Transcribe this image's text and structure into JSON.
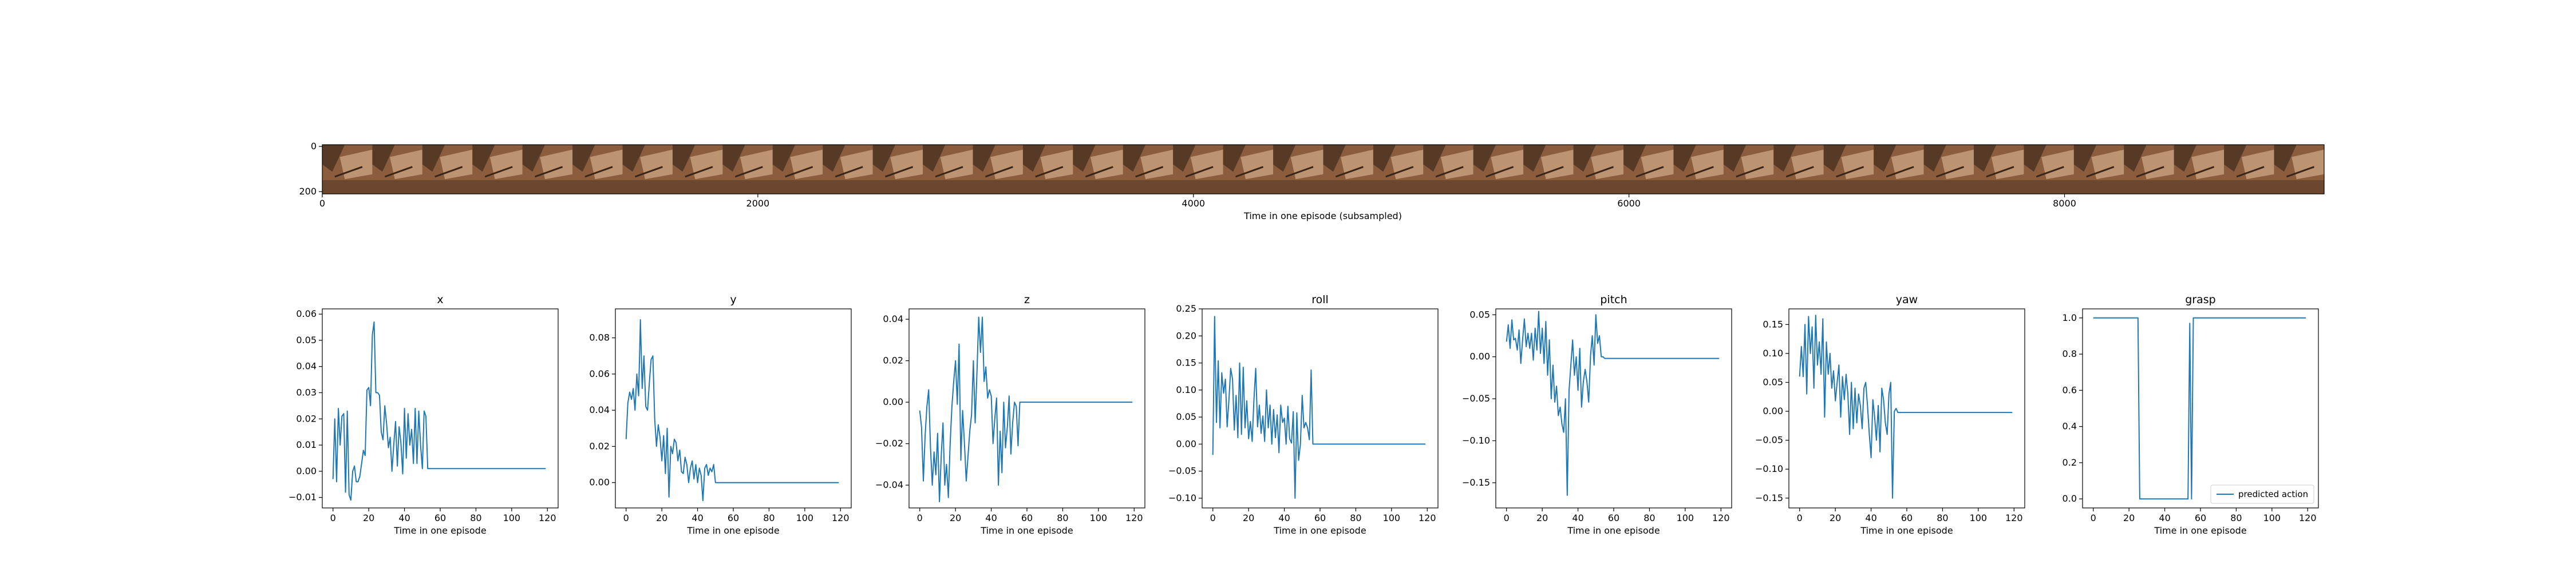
{
  "colors": {
    "line": "#1f77b4",
    "frame": "#000000",
    "tile_dark": "#4e3422",
    "tile_mid": "#8c5d3d",
    "tile_light": "#c9a27f"
  },
  "image_strip": {
    "xlabel": "Time in one episode (subsampled)",
    "x_ticks": [
      "0",
      "2000",
      "4000",
      "6000",
      "8000"
    ],
    "y_ticks": [
      "0",
      "200"
    ],
    "content": "montage of robot camera frames",
    "frame_count": 40
  },
  "chart_data": [
    {
      "type": "line",
      "title": "x",
      "xlabel": "Time in one episode",
      "xlim": [
        -6,
        126
      ],
      "ylim": [
        -0.014,
        0.062
      ],
      "x_ticks": [
        0,
        20,
        40,
        60,
        80,
        100,
        120
      ],
      "y_ticks": [
        {
          "v": -0.01,
          "label": "−0.01"
        },
        {
          "v": 0.0,
          "label": "0.00"
        },
        {
          "v": 0.01,
          "label": "0.01"
        },
        {
          "v": 0.02,
          "label": "0.02"
        },
        {
          "v": 0.03,
          "label": "0.03"
        },
        {
          "v": 0.04,
          "label": "0.04"
        },
        {
          "v": 0.05,
          "label": "0.05"
        },
        {
          "v": 0.06,
          "label": "0.06"
        }
      ],
      "series": [
        {
          "x": [
            0,
            1,
            2,
            3,
            4,
            5,
            6,
            7,
            8,
            9,
            10,
            11,
            12,
            13,
            14,
            15,
            16,
            17,
            18,
            19,
            20,
            21,
            22,
            23,
            24,
            25,
            26,
            27,
            28,
            29,
            30,
            31,
            32,
            33,
            34,
            35,
            36,
            37,
            38,
            39,
            40,
            41,
            42,
            43,
            44,
            45,
            46,
            47,
            48,
            49,
            50,
            51,
            52,
            53,
            54,
            55,
            56,
            60,
            80,
            100,
            119
          ],
          "y": [
            -0.003,
            0.02,
            -0.004,
            0.024,
            0.01,
            0.021,
            0.022,
            -0.008,
            0.023,
            -0.009,
            -0.011,
            0.0,
            0.002,
            -0.004,
            -0.004,
            -0.002,
            0.003,
            0.008,
            0.006,
            0.031,
            0.032,
            0.025,
            0.052,
            0.057,
            0.03,
            0.03,
            0.029,
            0.015,
            0.012,
            0.025,
            0.018,
            0.009,
            0.013,
            0.0,
            0.01,
            0.019,
            0.002,
            0.017,
            0.011,
            -0.001,
            0.024,
            0.005,
            0.022,
            0.01,
            0.016,
            0.003,
            0.024,
            0.003,
            0.023,
            0.01,
            0.001,
            0.023,
            0.021,
            0.001,
            0.001,
            0.001,
            0.001,
            0.001,
            0.001,
            0.001,
            0.001
          ]
        }
      ]
    },
    {
      "type": "line",
      "title": "y",
      "xlabel": "Time in one episode",
      "xlim": [
        -6,
        126
      ],
      "ylim": [
        -0.014,
        0.096
      ],
      "x_ticks": [
        0,
        20,
        40,
        60,
        80,
        100,
        120
      ],
      "y_ticks": [
        {
          "v": 0.0,
          "label": "0.00"
        },
        {
          "v": 0.02,
          "label": "0.02"
        },
        {
          "v": 0.04,
          "label": "0.04"
        },
        {
          "v": 0.06,
          "label": "0.06"
        },
        {
          "v": 0.08,
          "label": "0.08"
        }
      ],
      "series": [
        {
          "x": [
            0,
            1,
            2,
            3,
            4,
            5,
            6,
            7,
            8,
            9,
            10,
            11,
            12,
            13,
            14,
            15,
            16,
            17,
            18,
            19,
            20,
            21,
            22,
            23,
            24,
            25,
            26,
            27,
            28,
            29,
            30,
            31,
            32,
            33,
            34,
            35,
            36,
            37,
            38,
            39,
            40,
            41,
            42,
            43,
            44,
            45,
            46,
            47,
            48,
            49,
            50,
            51,
            52,
            53,
            54,
            55,
            56,
            60,
            80,
            100,
            119
          ],
          "y": [
            0.024,
            0.044,
            0.05,
            0.046,
            0.052,
            0.04,
            0.06,
            0.048,
            0.09,
            0.052,
            0.07,
            0.042,
            0.04,
            0.055,
            0.068,
            0.07,
            0.035,
            0.02,
            0.032,
            0.025,
            0.012,
            0.026,
            0.005,
            0.03,
            -0.008,
            0.02,
            0.016,
            0.024,
            0.022,
            0.012,
            0.018,
            0.006,
            0.005,
            0.014,
            0.01,
            0.0,
            0.008,
            0.012,
            0.002,
            0.01,
            0.0,
            0.008,
            0.004,
            -0.01,
            0.008,
            0.01,
            0.004,
            0.008,
            0.006,
            0.01,
            0.0,
            0.0,
            0.0,
            0.0,
            0.0,
            0.0,
            0.0,
            0.0,
            0.0,
            0.0,
            0.0
          ]
        }
      ]
    },
    {
      "type": "line",
      "title": "z",
      "xlabel": "Time in one episode",
      "xlim": [
        -6,
        126
      ],
      "ylim": [
        -0.051,
        0.045
      ],
      "x_ticks": [
        0,
        20,
        40,
        60,
        80,
        100,
        120
      ],
      "y_ticks": [
        {
          "v": -0.04,
          "label": "−0.04"
        },
        {
          "v": -0.02,
          "label": "−0.02"
        },
        {
          "v": 0.0,
          "label": "0.00"
        },
        {
          "v": 0.02,
          "label": "0.02"
        },
        {
          "v": 0.04,
          "label": "0.04"
        }
      ],
      "series": [
        {
          "x": [
            0,
            1,
            2,
            3,
            4,
            5,
            6,
            7,
            8,
            9,
            10,
            11,
            12,
            13,
            14,
            15,
            16,
            17,
            18,
            19,
            20,
            21,
            22,
            23,
            24,
            25,
            26,
            27,
            28,
            29,
            30,
            31,
            32,
            33,
            34,
            35,
            36,
            37,
            38,
            39,
            40,
            41,
            42,
            43,
            44,
            45,
            46,
            47,
            48,
            49,
            50,
            51,
            52,
            53,
            54,
            55,
            56,
            60,
            80,
            100,
            119
          ],
          "y": [
            -0.004,
            -0.012,
            -0.038,
            -0.016,
            -0.002,
            0.006,
            -0.022,
            -0.04,
            -0.024,
            -0.035,
            -0.015,
            -0.048,
            -0.026,
            -0.01,
            -0.04,
            -0.03,
            -0.046,
            -0.02,
            -0.002,
            0.01,
            0.02,
            -0.001,
            0.028,
            -0.028,
            -0.004,
            -0.02,
            -0.038,
            -0.026,
            -0.014,
            -0.006,
            0.02,
            -0.01,
            0.014,
            0.041,
            0.024,
            0.041,
            0.01,
            0.017,
            0.002,
            0.006,
            0.003,
            -0.02,
            -0.008,
            0.002,
            -0.04,
            -0.014,
            -0.034,
            0.0,
            -0.022,
            -0.012,
            0.003,
            -0.025,
            -0.01,
            0.0,
            -0.002,
            -0.021,
            0.0,
            0.0,
            0.0,
            0.0,
            0.0
          ]
        }
      ]
    },
    {
      "type": "line",
      "title": "roll",
      "xlabel": "Time in one episode",
      "xlim": [
        -6,
        126
      ],
      "ylim": [
        -0.118,
        0.25
      ],
      "x_ticks": [
        0,
        20,
        40,
        60,
        80,
        100,
        120
      ],
      "y_ticks": [
        {
          "v": -0.1,
          "label": "−0.10"
        },
        {
          "v": -0.05,
          "label": "−0.05"
        },
        {
          "v": 0.0,
          "label": "0.00"
        },
        {
          "v": 0.05,
          "label": "0.05"
        },
        {
          "v": 0.1,
          "label": "0.10"
        },
        {
          "v": 0.15,
          "label": "0.15"
        },
        {
          "v": 0.2,
          "label": "0.20"
        },
        {
          "v": 0.25,
          "label": "0.25"
        }
      ],
      "series": [
        {
          "x": [
            0,
            1,
            2,
            3,
            4,
            5,
            6,
            7,
            8,
            9,
            10,
            11,
            12,
            13,
            14,
            15,
            16,
            17,
            18,
            19,
            20,
            21,
            22,
            23,
            24,
            25,
            26,
            27,
            28,
            29,
            30,
            31,
            32,
            33,
            34,
            35,
            36,
            37,
            38,
            39,
            40,
            41,
            42,
            43,
            44,
            45,
            46,
            47,
            48,
            49,
            50,
            51,
            52,
            53,
            54,
            55,
            56,
            60,
            80,
            100,
            119
          ],
          "y": [
            -0.02,
            0.236,
            0.04,
            0.154,
            0.03,
            0.132,
            0.094,
            0.12,
            0.032,
            0.082,
            0.14,
            0.12,
            0.026,
            0.09,
            0.012,
            0.15,
            0.018,
            0.142,
            0.03,
            0.08,
            0.01,
            0.042,
            0.005,
            0.082,
            0.14,
            0.032,
            0.072,
            0.02,
            0.052,
            0.005,
            0.1,
            0.03,
            0.072,
            0.0,
            0.064,
            0.012,
            0.054,
            -0.016,
            0.072,
            0.04,
            0.048,
            0.0,
            0.07,
            0.01,
            0.002,
            0.06,
            -0.1,
            0.058,
            -0.03,
            0.0,
            0.09,
            0.03,
            0.04,
            0.03,
            0.008,
            0.137,
            0.0,
            0.0,
            0.0,
            0.0,
            0.0
          ]
        }
      ]
    },
    {
      "type": "line",
      "title": "pitch",
      "xlabel": "Time in one episode",
      "xlim": [
        -6,
        126
      ],
      "ylim": [
        -0.18,
        0.057
      ],
      "x_ticks": [
        0,
        20,
        40,
        60,
        80,
        100,
        120
      ],
      "y_ticks": [
        {
          "v": -0.15,
          "label": "−0.15"
        },
        {
          "v": -0.1,
          "label": "−0.10"
        },
        {
          "v": -0.05,
          "label": "−0.05"
        },
        {
          "v": 0.0,
          "label": "0.00"
        },
        {
          "v": 0.05,
          "label": "0.05"
        }
      ],
      "series": [
        {
          "x": [
            0,
            1,
            2,
            3,
            4,
            5,
            6,
            7,
            8,
            9,
            10,
            11,
            12,
            13,
            14,
            15,
            16,
            17,
            18,
            19,
            20,
            21,
            22,
            23,
            24,
            25,
            26,
            27,
            28,
            29,
            30,
            31,
            32,
            33,
            34,
            35,
            36,
            37,
            38,
            39,
            40,
            41,
            42,
            43,
            44,
            45,
            46,
            47,
            48,
            49,
            50,
            51,
            52,
            53,
            54,
            55,
            56,
            60,
            80,
            100,
            119
          ],
          "y": [
            0.018,
            0.038,
            0.01,
            0.044,
            0.02,
            0.022,
            0.008,
            0.032,
            -0.008,
            0.02,
            0.045,
            0.012,
            0.028,
            0.01,
            0.028,
            -0.004,
            0.034,
            0.008,
            0.054,
            0.004,
            0.034,
            -0.008,
            0.042,
            -0.022,
            0.02,
            -0.05,
            -0.01,
            -0.054,
            -0.035,
            -0.07,
            -0.06,
            -0.08,
            -0.09,
            -0.05,
            -0.165,
            -0.04,
            -0.01,
            0.02,
            -0.022,
            0.0,
            -0.04,
            0.01,
            -0.06,
            -0.03,
            -0.015,
            -0.03,
            -0.054,
            0.0,
            0.025,
            -0.01,
            0.05,
            0.016,
            0.025,
            0.0,
            0.0,
            -0.002,
            -0.002,
            -0.002,
            -0.002,
            -0.002,
            -0.002
          ]
        }
      ]
    },
    {
      "type": "line",
      "title": "yaw",
      "xlabel": "Time in one episode",
      "xlim": [
        -6,
        126
      ],
      "ylim": [
        -0.167,
        0.177
      ],
      "x_ticks": [
        0,
        20,
        40,
        60,
        80,
        100,
        120
      ],
      "y_ticks": [
        {
          "v": -0.15,
          "label": "−0.15"
        },
        {
          "v": -0.1,
          "label": "−0.10"
        },
        {
          "v": -0.05,
          "label": "−0.05"
        },
        {
          "v": 0.0,
          "label": "0.00"
        },
        {
          "v": 0.05,
          "label": "0.05"
        },
        {
          "v": 0.1,
          "label": "0.10"
        },
        {
          "v": 0.15,
          "label": "0.15"
        }
      ],
      "series": [
        {
          "x": [
            0,
            1,
            2,
            3,
            4,
            5,
            6,
            7,
            8,
            9,
            10,
            11,
            12,
            13,
            14,
            15,
            16,
            17,
            18,
            19,
            20,
            21,
            22,
            23,
            24,
            25,
            26,
            27,
            28,
            29,
            30,
            31,
            32,
            33,
            34,
            35,
            36,
            37,
            38,
            39,
            40,
            41,
            42,
            43,
            44,
            45,
            46,
            47,
            48,
            49,
            50,
            51,
            52,
            53,
            54,
            55,
            56,
            60,
            80,
            100,
            119
          ],
          "y": [
            0.06,
            0.112,
            0.06,
            0.15,
            0.03,
            0.164,
            0.1,
            0.146,
            0.04,
            0.166,
            0.08,
            0.12,
            0.064,
            0.16,
            -0.01,
            0.12,
            0.064,
            0.1,
            0.04,
            0.07,
            0.018,
            0.05,
            0.08,
            -0.01,
            0.06,
            0.02,
            0.064,
            0.03,
            -0.04,
            0.05,
            -0.03,
            0.04,
            -0.02,
            0.03,
            0.01,
            -0.03,
            0.04,
            0.05,
            0.01,
            -0.04,
            -0.08,
            0.02,
            -0.01,
            -0.05,
            0.01,
            -0.07,
            0.04,
            0.02,
            -0.02,
            -0.04,
            0.03,
            0.05,
            -0.15,
            0.0,
            0.005,
            -0.002,
            -0.002,
            -0.002,
            -0.002,
            -0.002,
            -0.002
          ]
        }
      ]
    },
    {
      "type": "line",
      "title": "grasp",
      "xlabel": "Time in one episode",
      "xlim": [
        -6,
        126
      ],
      "ylim": [
        -0.05,
        1.05
      ],
      "x_ticks": [
        0,
        20,
        40,
        60,
        80,
        100,
        120
      ],
      "y_ticks": [
        {
          "v": 0.0,
          "label": "0.0"
        },
        {
          "v": 0.2,
          "label": "0.2"
        },
        {
          "v": 0.4,
          "label": "0.4"
        },
        {
          "v": 0.6,
          "label": "0.6"
        },
        {
          "v": 0.8,
          "label": "0.8"
        },
        {
          "v": 1.0,
          "label": "1.0"
        }
      ],
      "legend": {
        "label": "predicted action",
        "position": "lower right"
      },
      "series": [
        {
          "name": "predicted action",
          "x": [
            0,
            25,
            26,
            53,
            54,
            55,
            56,
            119
          ],
          "y": [
            1.0,
            1.0,
            0.0,
            0.0,
            0.97,
            0.0,
            1.0,
            1.0
          ]
        }
      ]
    }
  ]
}
